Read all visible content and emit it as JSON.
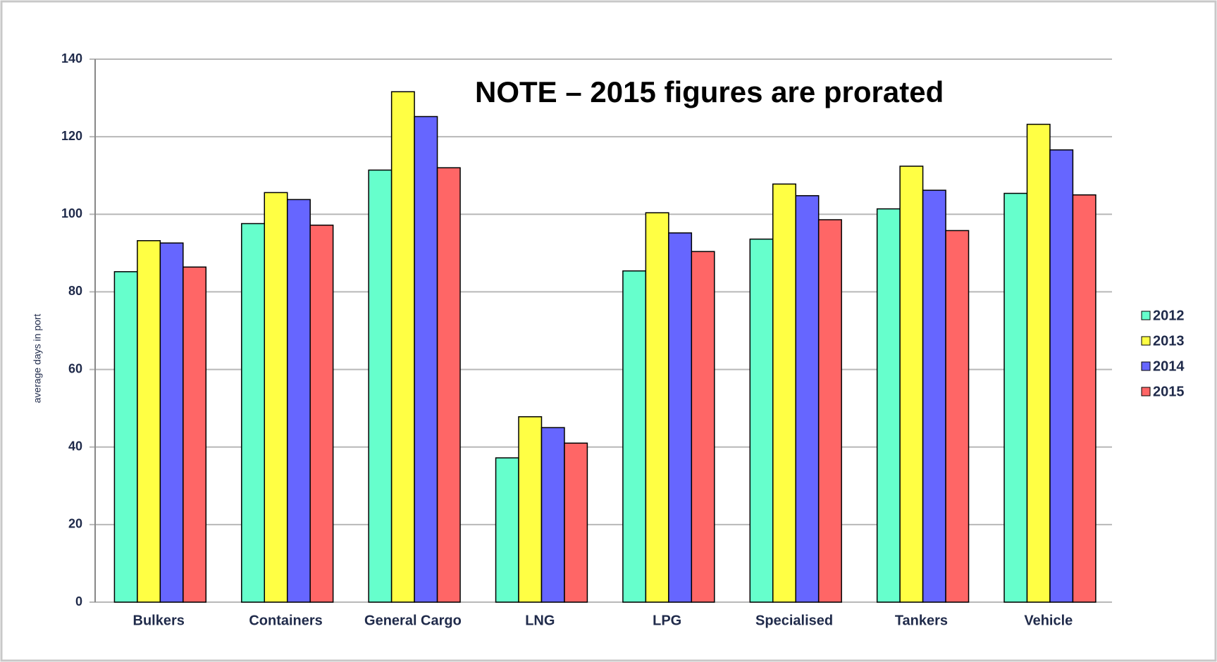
{
  "chart_data": {
    "type": "bar",
    "annotation": "NOTE – 2015 figures are prorated",
    "y_label": "average days in port",
    "categories": [
      "Bulkers",
      "Containers",
      "General Cargo",
      "LNG",
      "LPG",
      "Specialised",
      "Tankers",
      "Vehicle"
    ],
    "series": [
      {
        "name": "2012",
        "color": "#66ffcc",
        "values": [
          85.2,
          97.6,
          111.4,
          37.2,
          85.4,
          93.6,
          101.4,
          105.4
        ]
      },
      {
        "name": "2013",
        "color": "#ffff44",
        "values": [
          93.2,
          105.6,
          131.6,
          47.8,
          100.4,
          107.8,
          112.4,
          123.2
        ]
      },
      {
        "name": "2014",
        "color": "#6666ff",
        "values": [
          92.6,
          103.8,
          125.2,
          45,
          95.2,
          104.8,
          106.2,
          116.6
        ]
      },
      {
        "name": "2015",
        "color": "#ff6666",
        "values": [
          86.4,
          97.2,
          112,
          41,
          90.4,
          98.6,
          95.8,
          105
        ]
      }
    ],
    "ylim": [
      0,
      140
    ],
    "yticks": [
      0,
      20,
      40,
      60,
      80,
      100,
      120,
      140
    ],
    "grid": true,
    "legend": "right"
  }
}
